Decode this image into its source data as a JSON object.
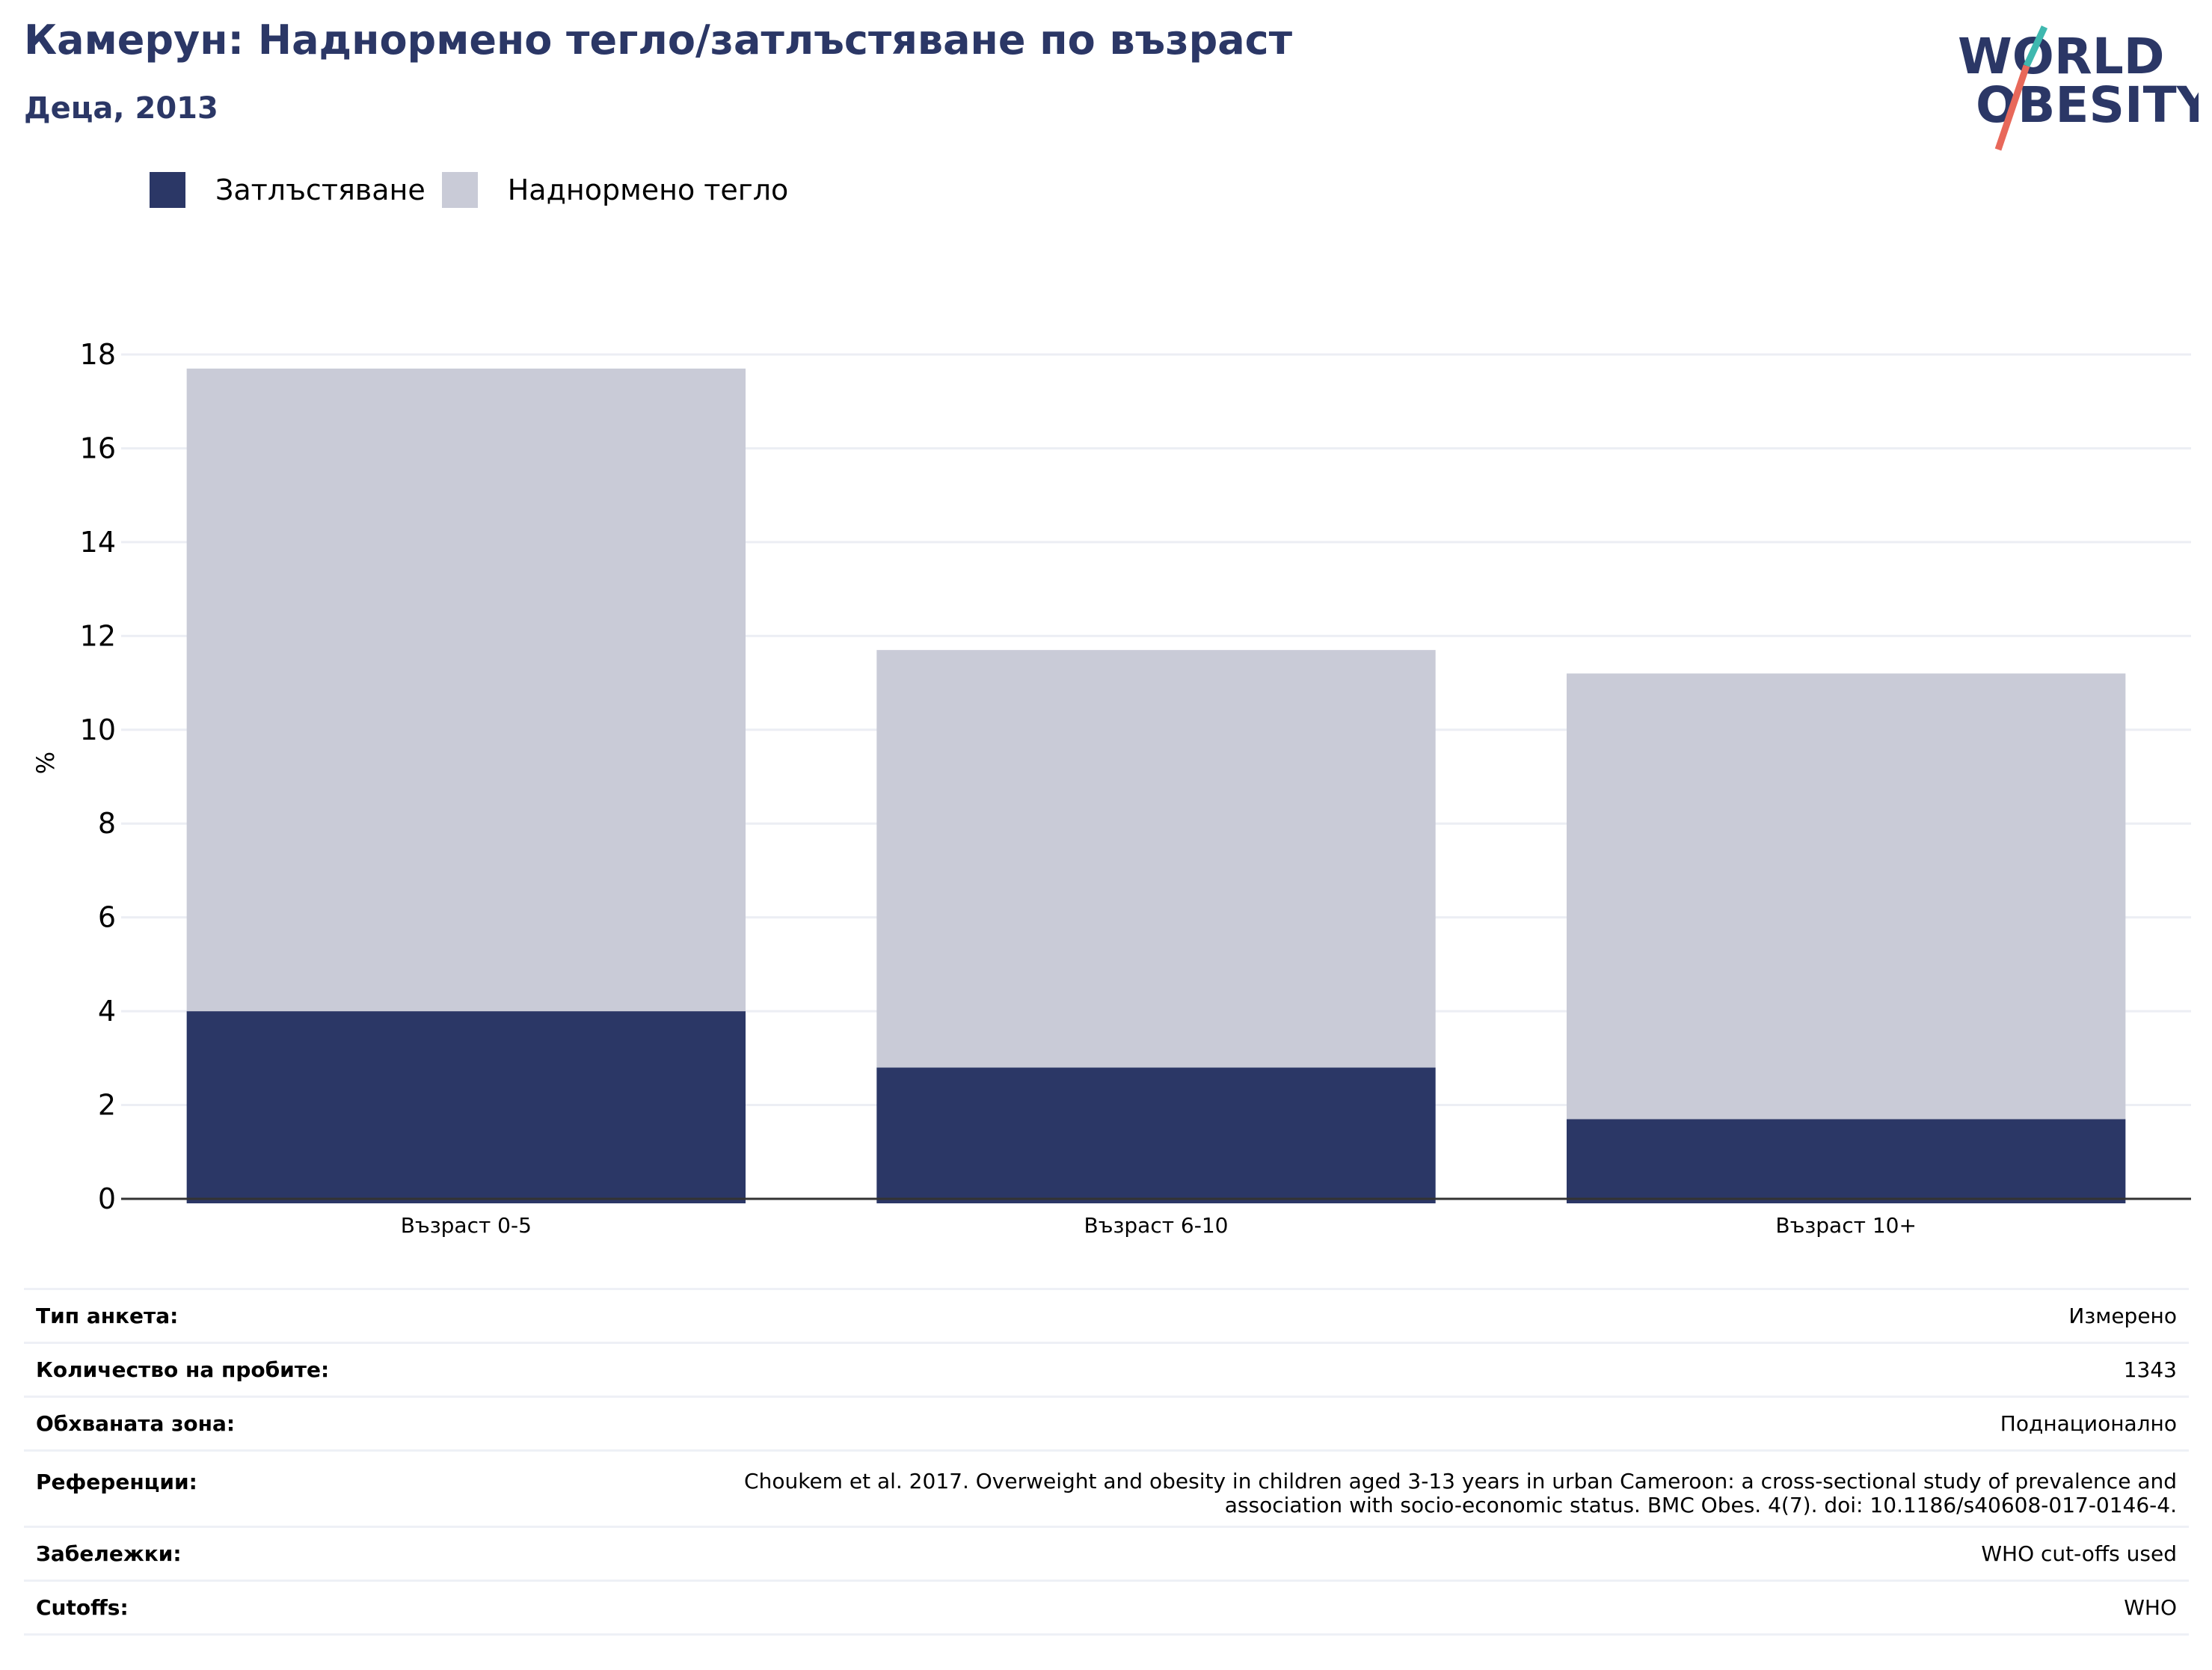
{
  "header": {
    "title": "Камерун: Наднормено тегло/затлъстяване по възраст",
    "subtitle": "Деца, 2013"
  },
  "logo": {
    "line1": "WORLD",
    "line2": "OBESITY",
    "colors": {
      "text": "#2b3766",
      "slash_top": "#3fb8af",
      "slash_bottom": "#e8685a"
    }
  },
  "colors": {
    "obesity": "#2b3766",
    "overweight": "#c9cbd7",
    "grid": "#eceef4",
    "axis": "#333333"
  },
  "legend": [
    {
      "label": "Затлъстяване",
      "color": "#2b3766"
    },
    {
      "label": "Наднормено тегло",
      "color": "#c9cbd7"
    }
  ],
  "chart_data": {
    "type": "bar",
    "stacked": true,
    "categories": [
      "Възраст 0-5",
      "Възраст 6-10",
      "Възраст 10+"
    ],
    "series": [
      {
        "name": "Затлъстяване",
        "values": [
          4.0,
          2.8,
          1.7
        ]
      },
      {
        "name": "Наднормено тегло",
        "values": [
          13.7,
          8.9,
          9.5
        ]
      }
    ],
    "ylabel": "%",
    "ylim": [
      0,
      18
    ],
    "yticks": [
      0,
      2,
      4,
      6,
      8,
      10,
      12,
      14,
      16,
      18
    ],
    "grid": true,
    "legend_position": "top-left"
  },
  "info": [
    {
      "key": "Тип анкета:",
      "value": "Измерено"
    },
    {
      "key": "Количество на пробите:",
      "value": "1343"
    },
    {
      "key": "Обхваната зона:",
      "value": "Поднационално"
    },
    {
      "key": "Референции:",
      "value_lines": [
        "Choukem et al. 2017. Overweight and obesity in children aged 3-13 years in urban Cameroon: a cross-sectional study of prevalence and",
        "association with socio-economic status. BMC Obes. 4(7). doi: 10.1186/s40608-017-0146-4."
      ]
    },
    {
      "key": "Забележки:",
      "value": "WHO cut-offs used"
    },
    {
      "key": "Cutoffs:",
      "value": "WHO"
    }
  ]
}
